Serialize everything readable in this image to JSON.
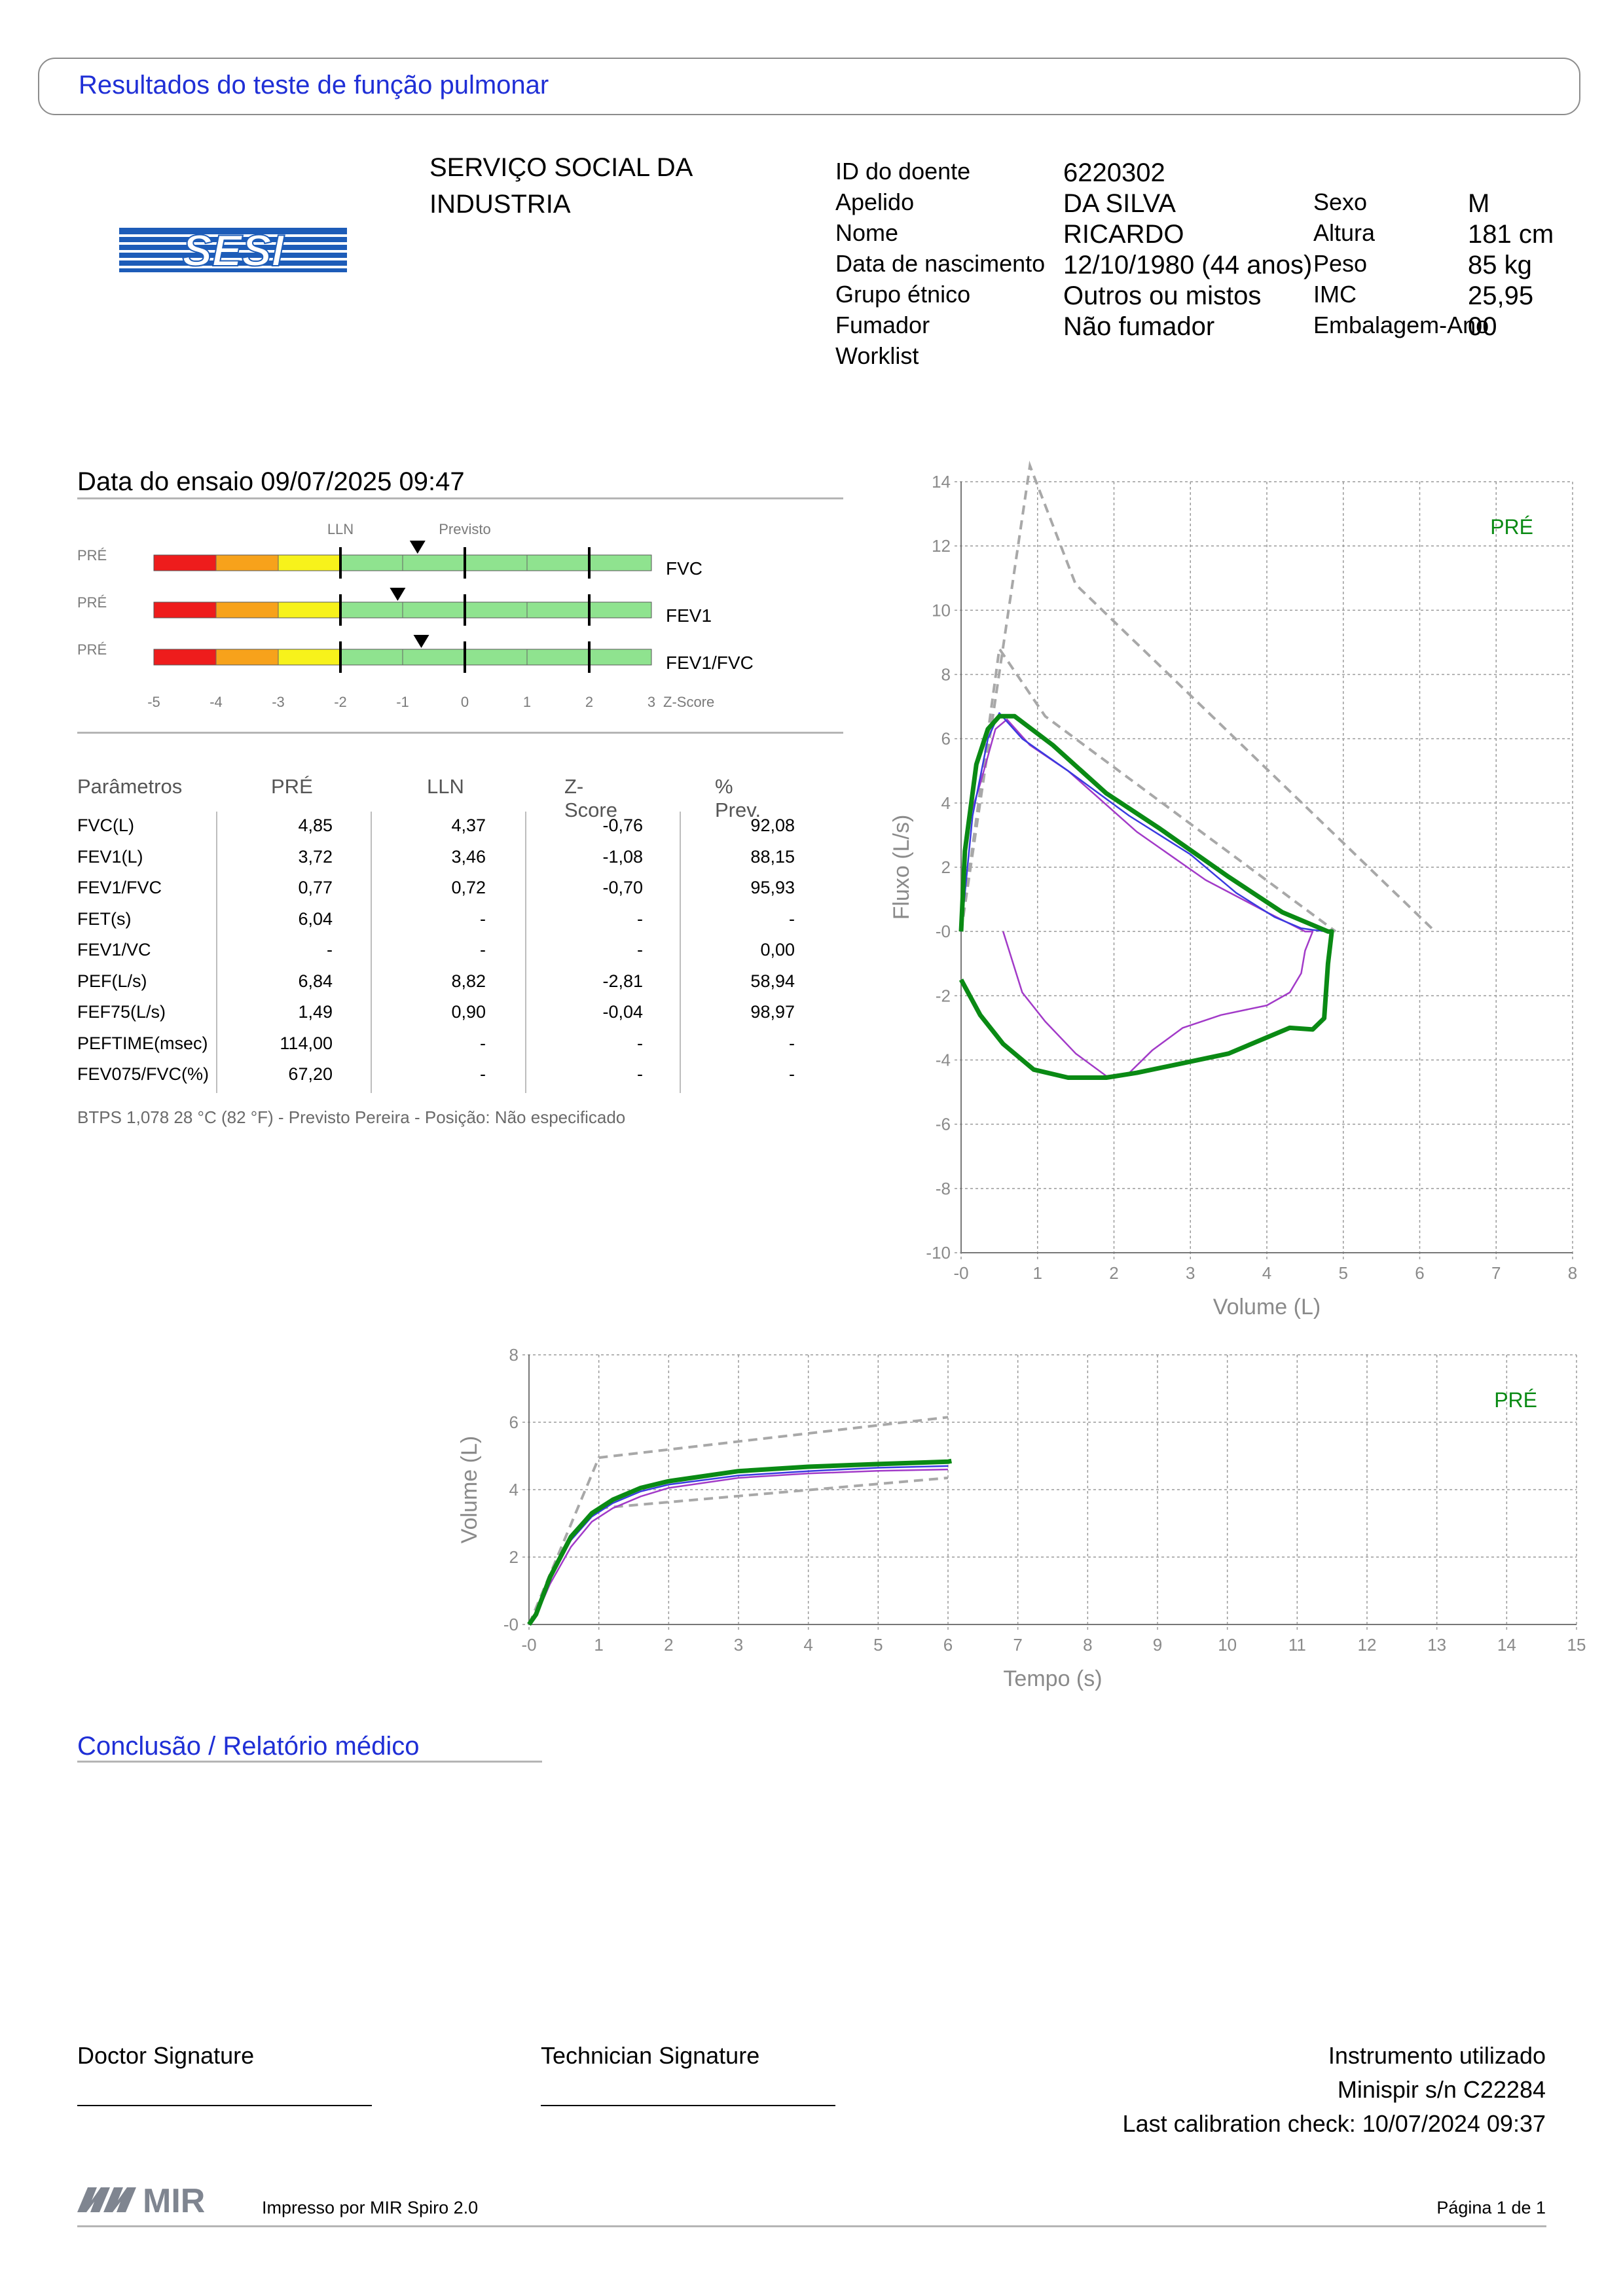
{
  "header": {
    "title": "Resultados do teste de função pulmonar"
  },
  "logo": {
    "text": "SESI"
  },
  "organization": {
    "line1": "SERVIÇO SOCIAL DA",
    "line2": "INDUSTRIA"
  },
  "patient": {
    "id_label": "ID do doente",
    "id_value": "6220302",
    "surname_label": "Apelido",
    "surname_value": "DA SILVA",
    "name_label": "Nome",
    "name_value": "RICARDO",
    "dob_label": "Data de nascimento",
    "dob_value": "12/10/1980 (44 anos)",
    "ethnic_label": "Grupo étnico",
    "ethnic_value": "Outros ou mistos",
    "smoker_label": "Fumador",
    "smoker_value": "Não fumador",
    "worklist_label": "Worklist",
    "sex_label": "Sexo",
    "sex_value": "M",
    "height_label": "Altura",
    "height_value": "181 cm",
    "weight_label": "Peso",
    "weight_value": "85 kg",
    "bmi_label": "IMC",
    "bmi_value": "25,95",
    "packyears_label": "Embalagem-Ano",
    "packyears_value": "00"
  },
  "test": {
    "date_text": "Data do ensaio 09/07/2025 09:47"
  },
  "zscore": {
    "lln_label": "LLN",
    "pred_label": "Previsto",
    "axis_title": "Z-Score",
    "ticks": [
      "-5",
      "-4",
      "-3",
      "-2",
      "-1",
      "0",
      "1",
      "2",
      "3"
    ],
    "bars": [
      {
        "phase": "PRÉ",
        "name": "FVC",
        "z": -0.76
      },
      {
        "phase": "PRÉ",
        "name": "FEV1",
        "z": -1.08
      },
      {
        "phase": "PRÉ",
        "name": "FEV1/FVC",
        "z": -0.7
      }
    ],
    "colors": {
      "red": "#ee1c1c",
      "orange": "#f7a21b",
      "yellow": "#f7f21b",
      "green": "#8fe38f"
    }
  },
  "parameters": {
    "headers": [
      "Parâmetros",
      "PRÉ",
      "LLN",
      "Z-Score",
      "% Prev."
    ],
    "rows": [
      [
        "FVC(L)",
        "4,85",
        "4,37",
        "-0,76",
        "92,08"
      ],
      [
        "FEV1(L)",
        "3,72",
        "3,46",
        "-1,08",
        "88,15"
      ],
      [
        "FEV1/FVC",
        "0,77",
        "0,72",
        "-0,70",
        "95,93"
      ],
      [
        "FET(s)",
        "6,04",
        "-",
        "-",
        "-"
      ],
      [
        "FEV1/VC",
        "-",
        "-",
        "-",
        "0,00"
      ],
      [
        "PEF(L/s)",
        "6,84",
        "8,82",
        "-2,81",
        "58,94"
      ],
      [
        "FEF75(L/s)",
        "1,49",
        "0,90",
        "-0,04",
        "98,97"
      ],
      [
        "PEFTIME(msec)",
        "114,00",
        "-",
        "-",
        "-"
      ],
      [
        "FEV075/FVC(%)",
        "67,20",
        "-",
        "-",
        "-"
      ]
    ],
    "footnote": "BTPS 1,078 28 °C (82 °F) - Previsto Pereira - Posição: Não especificado"
  },
  "chart_data": [
    {
      "type": "line",
      "title": "",
      "xlabel": "Volume (L)",
      "ylabel": "Fluxo (L/s)",
      "xlim": [
        0,
        8
      ],
      "ylim": [
        -10,
        14
      ],
      "xticks": [
        "-0",
        "1",
        "2",
        "3",
        "4",
        "5",
        "6",
        "7",
        "8"
      ],
      "yticks": [
        "-10",
        "-8",
        "-6",
        "-4",
        "-2",
        "-0",
        "2",
        "4",
        "6",
        "8",
        "10",
        "12",
        "14"
      ],
      "grid": true,
      "annotation": "PRÉ",
      "colors": {
        "best": "#0a8a14",
        "trial1": "#3a3ae0",
        "trial2": "#a23ac8",
        "predicted": "#a8a8a8"
      },
      "series": [
        {
          "role": "predicted-upper",
          "points": [
            [
              0,
              0
            ],
            [
              0.9,
              14.5
            ],
            [
              1.5,
              10.8
            ],
            [
              6.2,
              0
            ]
          ]
        },
        {
          "role": "predicted-lower",
          "points": [
            [
              0,
              0
            ],
            [
              0.5,
              8.8
            ],
            [
              1.1,
              6.7
            ],
            [
              4.9,
              0
            ]
          ]
        },
        {
          "role": "best",
          "points": [
            [
              0,
              -1.5
            ],
            [
              0.25,
              -2.6
            ],
            [
              0.55,
              -3.5
            ],
            [
              0.95,
              -4.3
            ],
            [
              1.4,
              -4.55
            ],
            [
              1.9,
              -4.55
            ],
            [
              2.3,
              -4.4
            ],
            [
              2.9,
              -4.1
            ],
            [
              3.5,
              -3.8
            ],
            [
              3.9,
              -3.4
            ],
            [
              4.3,
              -3.0
            ],
            [
              4.6,
              -3.05
            ],
            [
              4.75,
              -2.7
            ],
            [
              4.8,
              -1.0
            ],
            [
              4.85,
              0
            ],
            [
              4.8,
              0
            ],
            [
              4.2,
              0.6
            ],
            [
              3.5,
              1.7
            ],
            [
              2.6,
              3.2
            ],
            [
              1.9,
              4.3
            ],
            [
              1.2,
              5.8
            ],
            [
              0.7,
              6.7
            ],
            [
              0.5,
              6.7
            ],
            [
              0.35,
              6.3
            ],
            [
              0.2,
              5.2
            ],
            [
              0.05,
              2.5
            ],
            [
              0,
              0
            ]
          ]
        },
        {
          "role": "trial1",
          "points": [
            [
              0,
              0
            ],
            [
              0.15,
              3.6
            ],
            [
              0.35,
              6.0
            ],
            [
              0.5,
              6.8
            ],
            [
              0.8,
              6.0
            ],
            [
              1.4,
              5.0
            ],
            [
              2.2,
              3.6
            ],
            [
              3.0,
              2.4
            ],
            [
              3.6,
              1.2
            ],
            [
              4.1,
              0.45
            ],
            [
              4.3,
              0.25
            ],
            [
              4.45,
              0.1
            ],
            [
              4.6,
              0.05
            ],
            [
              4.8,
              0
            ]
          ]
        },
        {
          "role": "trial2",
          "points": [
            [
              0.55,
              0
            ],
            [
              0.8,
              -1.9
            ],
            [
              1.1,
              -2.8
            ],
            [
              1.5,
              -3.8
            ],
            [
              1.9,
              -4.5
            ],
            [
              2.2,
              -4.4
            ],
            [
              2.5,
              -3.7
            ],
            [
              2.9,
              -3.0
            ],
            [
              3.4,
              -2.6
            ],
            [
              4.0,
              -2.3
            ],
            [
              4.3,
              -1.9
            ],
            [
              4.45,
              -1.3
            ],
            [
              4.5,
              -0.6
            ],
            [
              4.6,
              0
            ],
            [
              4.5,
              0
            ],
            [
              4.0,
              0.6
            ],
            [
              3.2,
              1.6
            ],
            [
              2.3,
              3.1
            ],
            [
              1.4,
              5.0
            ],
            [
              0.9,
              5.8
            ],
            [
              0.6,
              6.6
            ],
            [
              0.45,
              6.3
            ],
            [
              0.25,
              4.6
            ],
            [
              0.12,
              3.6
            ]
          ]
        }
      ]
    },
    {
      "type": "line",
      "title": "",
      "xlabel": "Tempo (s)",
      "ylabel": "Volume (L)",
      "xlim": [
        0,
        15
      ],
      "ylim": [
        0,
        8
      ],
      "xticks": [
        "-0",
        "1",
        "2",
        "3",
        "4",
        "5",
        "6",
        "7",
        "8",
        "9",
        "10",
        "11",
        "12",
        "13",
        "14",
        "15"
      ],
      "yticks": [
        "-0",
        "2",
        "4",
        "6",
        "8"
      ],
      "grid": true,
      "annotation": "PRÉ",
      "colors": {
        "best": "#0a8a14",
        "trial1": "#3a3ae0",
        "trial2": "#a23ac8",
        "predicted": "#a8a8a8"
      },
      "series": [
        {
          "role": "predicted-upper",
          "points": [
            [
              0,
              0
            ],
            [
              1,
              4.95
            ],
            [
              6,
              6.15
            ]
          ]
        },
        {
          "role": "predicted-lower",
          "points": [
            [
              1,
              3.45
            ],
            [
              6,
              4.35
            ]
          ]
        },
        {
          "role": "best",
          "points": [
            [
              0,
              0
            ],
            [
              0.1,
              0.3
            ],
            [
              0.3,
              1.4
            ],
            [
              0.6,
              2.6
            ],
            [
              0.9,
              3.3
            ],
            [
              1.2,
              3.7
            ],
            [
              1.6,
              4.05
            ],
            [
              2,
              4.25
            ],
            [
              3,
              4.55
            ],
            [
              4,
              4.68
            ],
            [
              5,
              4.76
            ],
            [
              6,
              4.83
            ],
            [
              6.05,
              4.85
            ]
          ]
        },
        {
          "role": "trial1",
          "points": [
            [
              0,
              0
            ],
            [
              0.1,
              0.3
            ],
            [
              0.3,
              1.35
            ],
            [
              0.6,
              2.5
            ],
            [
              0.9,
              3.2
            ],
            [
              1.2,
              3.6
            ],
            [
              1.6,
              3.95
            ],
            [
              2,
              4.15
            ],
            [
              3,
              4.42
            ],
            [
              4,
              4.55
            ],
            [
              5,
              4.65
            ],
            [
              6,
              4.7
            ]
          ]
        },
        {
          "role": "trial2",
          "points": [
            [
              0,
              0
            ],
            [
              0.1,
              0.25
            ],
            [
              0.3,
              1.2
            ],
            [
              0.6,
              2.3
            ],
            [
              0.9,
              3.05
            ],
            [
              1.2,
              3.45
            ],
            [
              1.6,
              3.8
            ],
            [
              2,
              4.05
            ],
            [
              3,
              4.35
            ],
            [
              4,
              4.48
            ],
            [
              5,
              4.56
            ],
            [
              6,
              4.6
            ]
          ]
        }
      ]
    }
  ],
  "conclusion": {
    "title": "Conclusão / Relatório médico"
  },
  "footer": {
    "doctor_sig": "Doctor Signature",
    "tech_sig": "Technician Signature",
    "instrument_label": "Instrumento utilizado",
    "instrument_value": "Minispir s/n C22284",
    "calibration": "Last calibration check: 10/07/2024 09:37",
    "brand": "MIR",
    "printed_by": "Impresso por MIR Spiro 2.0",
    "page": "Página 1 de 1"
  }
}
